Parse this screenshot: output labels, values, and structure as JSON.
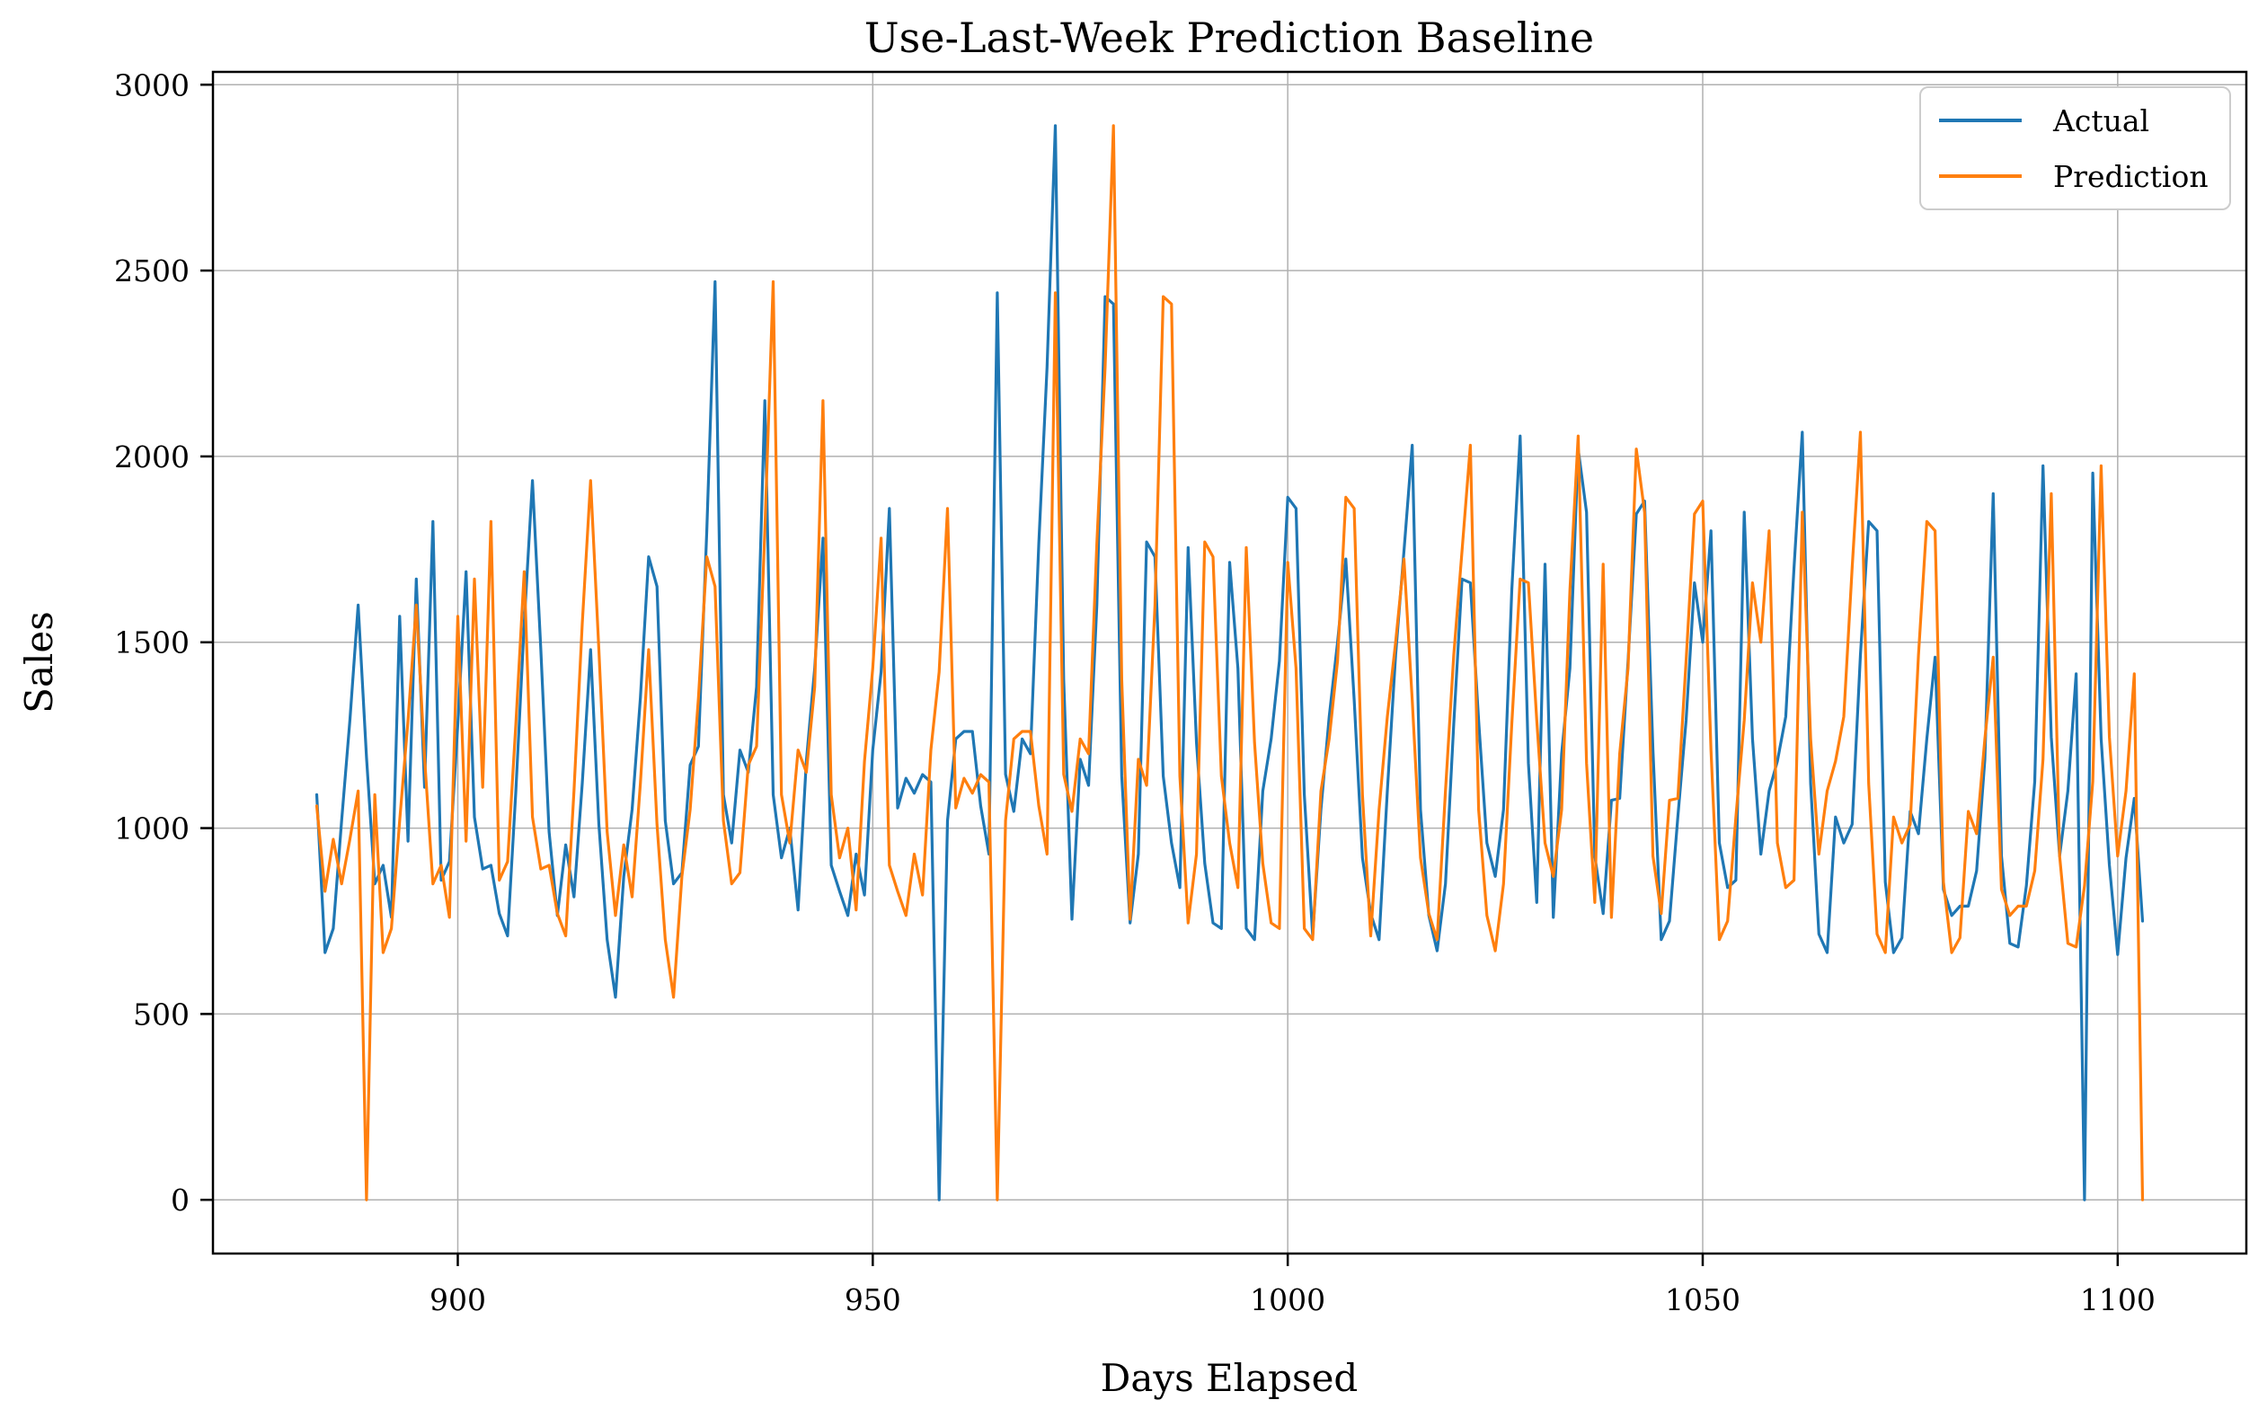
{
  "title": "Use-Last-Week Prediction Baseline",
  "chart_data": {
    "type": "line",
    "title": "Use-Last-Week Prediction Baseline",
    "xlabel": "Days Elapsed",
    "ylabel": "Sales",
    "grid": true,
    "legend_position": "upper right",
    "xlim": [
      870.5,
      1115.5
    ],
    "ylim": [
      -144.5,
      3034.5
    ],
    "xticks": [
      900,
      950,
      1000,
      1050,
      1100
    ],
    "yticks": [
      0,
      500,
      1000,
      1500,
      2000,
      2500,
      3000
    ],
    "x_start": 883,
    "x_step": 1,
    "series": [
      {
        "name": "Actual",
        "color": "#1f77b4",
        "values": [
          1090,
          665,
          730,
          1020,
          1290,
          1600,
          1190,
          850,
          900,
          760,
          1570,
          965,
          1670,
          1110,
          1825,
          860,
          910,
          1280,
          1690,
          1030,
          890,
          900,
          770,
          710,
          1100,
          1550,
          1935,
          1480,
          990,
          765,
          955,
          815,
          1120,
          1480,
          1010,
          700,
          545,
          870,
          1050,
          1350,
          1730,
          1650,
          1020,
          850,
          880,
          1170,
          1220,
          1800,
          2470,
          1090,
          960,
          1210,
          1150,
          1380,
          2150,
          1090,
          920,
          1000,
          780,
          1180,
          1430,
          1780,
          900,
          830,
          765,
          930,
          820,
          1210,
          1420,
          1860,
          1054,
          1134,
          1094,
          1144,
          1124,
          0,
          1020,
          1240,
          1260,
          1260,
          1060,
          930,
          2440,
          1145,
          1045,
          1240,
          1200,
          1765,
          2240,
          2890,
          1400,
          755,
          1185,
          1115,
          1600,
          2430,
          2410,
          1140,
          745,
          930,
          1770,
          1730,
          1140,
          960,
          840,
          1755,
          1230,
          905,
          745,
          730,
          1715,
          1430,
          730,
          700,
          1100,
          1240,
          1450,
          1890,
          1860,
          1090,
          710,
          1050,
          1300,
          1500,
          1724,
          1345,
          920,
          770,
          700,
          1100,
          1465,
          1745,
          2030,
          1050,
          765,
          670,
          850,
          1280,
          1670,
          1660,
          1290,
          960,
          870,
          1050,
          1640,
          2055,
          1175,
          800,
          1710,
          760,
          1200,
          1430,
          2020,
          1850,
          925,
          770,
          1075,
          1080,
          1450,
          1845,
          1880,
          1210,
          700,
          750,
          1030,
          1290,
          1660,
          1500,
          1800,
          960,
          840,
          860,
          1850,
          1240,
          930,
          1100,
          1180,
          1300,
          1700,
          2065,
          1120,
          715,
          665,
          1030,
          960,
          1010,
          1465,
          1825,
          1800,
          855,
          665,
          705,
          1045,
          985,
          1240,
          1460,
          835,
          765,
          790,
          790,
          885,
          1185,
          1900,
          925,
          690,
          680,
          845,
          1125,
          1975,
          1245,
          925,
          1100,
          1415,
          0,
          1955,
          1240,
          900,
          660,
          920,
          1080,
          750
        ]
      },
      {
        "name": "Prediction",
        "color": "#ff7f0e",
        "values": [
          1060,
          830,
          970,
          850,
          970,
          1100,
          0,
          1090,
          665,
          730,
          1020,
          1290,
          1600,
          1190,
          850,
          900,
          760,
          1570,
          965,
          1670,
          1110,
          1825,
          860,
          910,
          1280,
          1690,
          1030,
          890,
          900,
          770,
          710,
          1100,
          1550,
          1935,
          1480,
          990,
          765,
          955,
          815,
          1120,
          1480,
          1010,
          700,
          545,
          870,
          1050,
          1350,
          1730,
          1650,
          1020,
          850,
          880,
          1170,
          1220,
          1800,
          2470,
          1090,
          960,
          1210,
          1150,
          1380,
          2150,
          1090,
          920,
          1000,
          780,
          1180,
          1430,
          1780,
          900,
          830,
          765,
          930,
          820,
          1210,
          1420,
          1860,
          1054,
          1134,
          1094,
          1144,
          1124,
          0,
          1020,
          1240,
          1260,
          1260,
          1060,
          930,
          2440,
          1145,
          1045,
          1240,
          1200,
          1765,
          2240,
          2890,
          1400,
          755,
          1185,
          1115,
          1600,
          2430,
          2410,
          1140,
          745,
          930,
          1770,
          1730,
          1140,
          960,
          840,
          1755,
          1230,
          905,
          745,
          730,
          1715,
          1430,
          730,
          700,
          1100,
          1240,
          1450,
          1890,
          1860,
          1090,
          710,
          1050,
          1300,
          1500,
          1724,
          1345,
          920,
          770,
          700,
          1100,
          1465,
          1745,
          2030,
          1050,
          765,
          670,
          850,
          1280,
          1670,
          1660,
          1290,
          960,
          870,
          1050,
          1640,
          2055,
          1175,
          800,
          1710,
          760,
          1200,
          1430,
          2020,
          1850,
          925,
          770,
          1075,
          1080,
          1450,
          1845,
          1880,
          1210,
          700,
          750,
          1030,
          1290,
          1660,
          1500,
          1800,
          960,
          840,
          860,
          1850,
          1240,
          930,
          1100,
          1180,
          1300,
          1700,
          2065,
          1120,
          715,
          665,
          1030,
          960,
          1010,
          1465,
          1825,
          1800,
          855,
          665,
          705,
          1045,
          985,
          1240,
          1460,
          835,
          765,
          790,
          790,
          885,
          1185,
          1900,
          925,
          690,
          680,
          845,
          1125,
          1975,
          1245,
          925,
          1100,
          1415,
          0
        ]
      }
    ]
  }
}
